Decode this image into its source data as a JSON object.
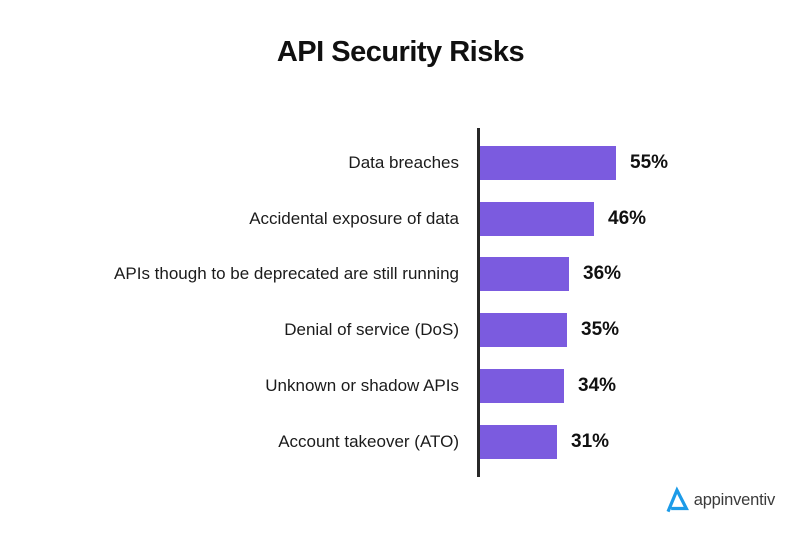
{
  "title": "API Security Risks",
  "chart_data": {
    "type": "bar",
    "orientation": "horizontal",
    "title": "API Security Risks",
    "categories": [
      "Data breaches",
      "Accidental exposure of data",
      "APIs though to be deprecated are still running",
      "Denial of service (DoS)",
      "Unknown or shadow APIs",
      "Account takeover (ATO)"
    ],
    "values": [
      55,
      46,
      36,
      35,
      34,
      31
    ],
    "value_labels": [
      "55%",
      "46%",
      "36%",
      "35%",
      "34%",
      "31%"
    ],
    "xlim": [
      0,
      60
    ],
    "grid": false,
    "legend": "none",
    "bar_color": "#7b5bdf",
    "axis_color": "#282828"
  },
  "logo": {
    "text": "appinventiv",
    "icon": "appinventiv-triangle-icon",
    "icon_color": "#1c9be8",
    "text_color": "#3a3a3a"
  }
}
